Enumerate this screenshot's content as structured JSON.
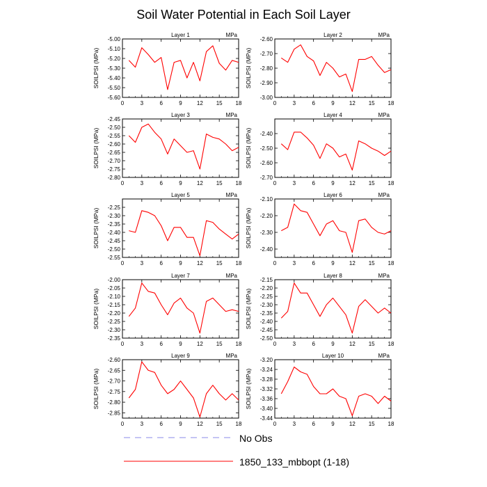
{
  "figure": {
    "title": "Soil Water Potential in Each Soil Layer",
    "legend": [
      {
        "label": "No Obs",
        "color": "#8a8ae8",
        "dash": true
      },
      {
        "label": "1850_133_mbbopt (1-18)",
        "color": "#ff0000",
        "dash": false
      }
    ]
  },
  "chart_data": [
    {
      "type": "line",
      "title": "Layer 1",
      "unit": "MPa",
      "ylabel": "SOILPSI  (MPa)",
      "x": [
        1,
        2,
        3,
        4,
        5,
        6,
        7,
        8,
        9,
        10,
        11,
        12,
        13,
        14,
        15,
        16,
        17,
        18
      ],
      "xticks": [
        0,
        3,
        6,
        9,
        12,
        15,
        18
      ],
      "xlim": [
        0,
        18
      ],
      "ylim": [
        -5.6,
        -5.0
      ],
      "yticks": [
        -5.6,
        -5.5,
        -5.4,
        -5.3,
        -5.2,
        -5.1,
        -5.0
      ],
      "ytick_labels": [
        "-5.60",
        "-5.50",
        "-5.40",
        "-5.30",
        "-5.20",
        "-5.10",
        "-5.00"
      ],
      "series": [
        {
          "name": "1850_133_mbbopt (1-18)",
          "color": "#ff0000",
          "values": [
            -5.22,
            -5.29,
            -5.09,
            -5.16,
            -5.24,
            -5.19,
            -5.52,
            -5.24,
            -5.22,
            -5.4,
            -5.24,
            -5.43,
            -5.13,
            -5.07,
            -5.25,
            -5.32,
            -5.22,
            -5.24
          ]
        }
      ]
    },
    {
      "type": "line",
      "title": "Layer 2",
      "unit": "MPa",
      "ylabel": "SOILPSI  (MPa)",
      "x": [
        1,
        2,
        3,
        4,
        5,
        6,
        7,
        8,
        9,
        10,
        11,
        12,
        13,
        14,
        15,
        16,
        17,
        18
      ],
      "xticks": [
        0,
        3,
        6,
        9,
        12,
        15,
        18
      ],
      "xlim": [
        0,
        18
      ],
      "ylim": [
        -3.0,
        -2.6
      ],
      "yticks": [
        -3.0,
        -2.9,
        -2.8,
        -2.7,
        -2.6
      ],
      "ytick_labels": [
        "-3.00",
        "-2.90",
        "-2.80",
        "-2.70",
        "-2.60"
      ],
      "series": [
        {
          "name": "1850_133_mbbopt (1-18)",
          "color": "#ff0000",
          "values": [
            -2.73,
            -2.76,
            -2.67,
            -2.64,
            -2.72,
            -2.75,
            -2.85,
            -2.76,
            -2.8,
            -2.86,
            -2.84,
            -2.96,
            -2.74,
            -2.74,
            -2.72,
            -2.78,
            -2.83,
            -2.81
          ]
        }
      ]
    },
    {
      "type": "line",
      "title": "Layer 3",
      "unit": "MPa",
      "ylabel": "SOILPSI  (MPa)",
      "x": [
        1,
        2,
        3,
        4,
        5,
        6,
        7,
        8,
        9,
        10,
        11,
        12,
        13,
        14,
        15,
        16,
        17,
        18
      ],
      "xticks": [
        0,
        3,
        6,
        9,
        12,
        15,
        18
      ],
      "xlim": [
        0,
        18
      ],
      "ylim": [
        -2.8,
        -2.45
      ],
      "yticks": [
        -2.8,
        -2.75,
        -2.7,
        -2.65,
        -2.6,
        -2.55,
        -2.5,
        -2.45
      ],
      "ytick_labels": [
        "-2.80",
        "-2.75",
        "-2.70",
        "-2.65",
        "-2.60",
        "-2.55",
        "-2.50",
        "-2.45"
      ],
      "series": [
        {
          "name": "1850_133_mbbopt (1-18)",
          "color": "#ff0000",
          "values": [
            -2.55,
            -2.59,
            -2.5,
            -2.48,
            -2.53,
            -2.57,
            -2.66,
            -2.57,
            -2.61,
            -2.65,
            -2.64,
            -2.75,
            -2.54,
            -2.56,
            -2.57,
            -2.6,
            -2.64,
            -2.62
          ]
        }
      ]
    },
    {
      "type": "line",
      "title": "Layer 4",
      "unit": "MPa",
      "ylabel": "SOILPSI  (MPa)",
      "x": [
        1,
        2,
        3,
        4,
        5,
        6,
        7,
        8,
        9,
        10,
        11,
        12,
        13,
        14,
        15,
        16,
        17,
        18
      ],
      "xticks": [
        0,
        3,
        6,
        9,
        12,
        15,
        18
      ],
      "xlim": [
        0,
        18
      ],
      "ylim": [
        -2.7,
        -2.3
      ],
      "yticks": [
        -2.7,
        -2.6,
        -2.5,
        -2.4
      ],
      "ytick_labels": [
        "-2.70",
        "-2.60",
        "-2.50",
        "-2.40"
      ],
      "series": [
        {
          "name": "1850_133_mbbopt (1-18)",
          "color": "#ff0000",
          "values": [
            -2.47,
            -2.51,
            -2.39,
            -2.39,
            -2.43,
            -2.48,
            -2.57,
            -2.47,
            -2.5,
            -2.56,
            -2.54,
            -2.65,
            -2.45,
            -2.47,
            -2.5,
            -2.52,
            -2.55,
            -2.52
          ]
        }
      ]
    },
    {
      "type": "line",
      "title": "Layer 5",
      "unit": "MPa",
      "ylabel": "SOILPSI  (MPa)",
      "x": [
        1,
        2,
        3,
        4,
        5,
        6,
        7,
        8,
        9,
        10,
        11,
        12,
        13,
        14,
        15,
        16,
        17,
        18
      ],
      "xticks": [
        0,
        3,
        6,
        9,
        12,
        15,
        18
      ],
      "xlim": [
        0,
        18
      ],
      "ylim": [
        -2.55,
        -2.2
      ],
      "yticks": [
        -2.55,
        -2.5,
        -2.45,
        -2.4,
        -2.35,
        -2.3,
        -2.25
      ],
      "ytick_labels": [
        "-2.55",
        "-2.50",
        "-2.45",
        "-2.40",
        "-2.35",
        "-2.30",
        "-2.25"
      ],
      "series": [
        {
          "name": "1850_133_mbbopt (1-18)",
          "color": "#ff0000",
          "values": [
            -2.39,
            -2.4,
            -2.27,
            -2.28,
            -2.3,
            -2.36,
            -2.45,
            -2.37,
            -2.37,
            -2.43,
            -2.43,
            -2.54,
            -2.33,
            -2.34,
            -2.38,
            -2.41,
            -2.44,
            -2.41
          ]
        }
      ]
    },
    {
      "type": "line",
      "title": "Layer 6",
      "unit": "MPa",
      "ylabel": "SOILPSI  (MPa)",
      "x": [
        1,
        2,
        3,
        4,
        5,
        6,
        7,
        8,
        9,
        10,
        11,
        12,
        13,
        14,
        15,
        16,
        17,
        18
      ],
      "xticks": [
        0,
        3,
        6,
        9,
        12,
        15,
        18
      ],
      "xlim": [
        0,
        18
      ],
      "ylim": [
        -2.45,
        -2.1
      ],
      "yticks": [
        -2.4,
        -2.3,
        -2.2,
        -2.1
      ],
      "ytick_labels": [
        "-2.40",
        "-2.30",
        "-2.20",
        "-2.10"
      ],
      "series": [
        {
          "name": "1850_133_mbbopt (1-18)",
          "color": "#ff0000",
          "values": [
            -2.29,
            -2.27,
            -2.13,
            -2.17,
            -2.18,
            -2.25,
            -2.32,
            -2.25,
            -2.23,
            -2.29,
            -2.3,
            -2.42,
            -2.23,
            -2.22,
            -2.27,
            -2.3,
            -2.31,
            -2.29
          ]
        }
      ]
    },
    {
      "type": "line",
      "title": "Layer 7",
      "unit": "MPa",
      "ylabel": "SOILPSI  (MPa)",
      "x": [
        1,
        2,
        3,
        4,
        5,
        6,
        7,
        8,
        9,
        10,
        11,
        12,
        13,
        14,
        15,
        16,
        17,
        18
      ],
      "xticks": [
        0,
        3,
        6,
        9,
        12,
        15,
        18
      ],
      "xlim": [
        0,
        18
      ],
      "ylim": [
        -2.35,
        -2.0
      ],
      "yticks": [
        -2.35,
        -2.3,
        -2.25,
        -2.2,
        -2.15,
        -2.1,
        -2.05,
        -2.0
      ],
      "ytick_labels": [
        "-2.35",
        "-2.30",
        "-2.25",
        "-2.20",
        "-2.15",
        "-2.10",
        "-2.05",
        "-2.00"
      ],
      "series": [
        {
          "name": "1850_133_mbbopt (1-18)",
          "color": "#ff0000",
          "values": [
            -2.22,
            -2.17,
            -2.02,
            -2.07,
            -2.08,
            -2.15,
            -2.21,
            -2.14,
            -2.11,
            -2.17,
            -2.2,
            -2.32,
            -2.13,
            -2.11,
            -2.15,
            -2.19,
            -2.18,
            -2.19
          ]
        }
      ]
    },
    {
      "type": "line",
      "title": "Layer 8",
      "unit": "MPa",
      "ylabel": "SOILPSI  (MPa)",
      "x": [
        1,
        2,
        3,
        4,
        5,
        6,
        7,
        8,
        9,
        10,
        11,
        12,
        13,
        14,
        15,
        16,
        17,
        18
      ],
      "xticks": [
        0,
        3,
        6,
        9,
        12,
        15,
        18
      ],
      "xlim": [
        0,
        18
      ],
      "ylim": [
        -2.5,
        -2.15
      ],
      "yticks": [
        -2.5,
        -2.45,
        -2.4,
        -2.35,
        -2.3,
        -2.25,
        -2.2,
        -2.15
      ],
      "ytick_labels": [
        "-2.50",
        "-2.45",
        "-2.40",
        "-2.35",
        "-2.30",
        "-2.25",
        "-2.20",
        "-2.15"
      ],
      "series": [
        {
          "name": "1850_133_mbbopt (1-18)",
          "color": "#ff0000",
          "values": [
            -2.38,
            -2.34,
            -2.17,
            -2.23,
            -2.23,
            -2.3,
            -2.37,
            -2.3,
            -2.26,
            -2.31,
            -2.36,
            -2.47,
            -2.31,
            -2.27,
            -2.31,
            -2.35,
            -2.32,
            -2.35
          ]
        }
      ]
    },
    {
      "type": "line",
      "title": "Layer 9",
      "unit": "MPa",
      "ylabel": "SOILPSI  (MPa)",
      "x": [
        1,
        2,
        3,
        4,
        5,
        6,
        7,
        8,
        9,
        10,
        11,
        12,
        13,
        14,
        15,
        16,
        17,
        18
      ],
      "xticks": [
        0,
        3,
        6,
        9,
        12,
        15,
        18
      ],
      "xlim": [
        0,
        18
      ],
      "ylim": [
        -2.875,
        -2.6
      ],
      "yticks": [
        -2.85,
        -2.8,
        -2.75,
        -2.7,
        -2.65,
        -2.6
      ],
      "ytick_labels": [
        "-2.85",
        "-2.80",
        "-2.75",
        "-2.70",
        "-2.65",
        "-2.60"
      ],
      "series": [
        {
          "name": "1850_133_mbbopt (1-18)",
          "color": "#ff0000",
          "values": [
            -2.78,
            -2.74,
            -2.61,
            -2.65,
            -2.66,
            -2.72,
            -2.76,
            -2.74,
            -2.7,
            -2.74,
            -2.78,
            -2.87,
            -2.76,
            -2.72,
            -2.76,
            -2.79,
            -2.76,
            -2.79
          ]
        }
      ]
    },
    {
      "type": "line",
      "title": "Layer 10",
      "unit": "MPa",
      "ylabel": "SOILPSI  (MPa)",
      "x": [
        1,
        2,
        3,
        4,
        5,
        6,
        7,
        8,
        9,
        10,
        11,
        12,
        13,
        14,
        15,
        16,
        17,
        18
      ],
      "xticks": [
        0,
        3,
        6,
        9,
        12,
        15,
        18
      ],
      "xlim": [
        0,
        18
      ],
      "ylim": [
        -3.44,
        -3.2
      ],
      "yticks": [
        -3.44,
        -3.4,
        -3.36,
        -3.32,
        -3.28,
        -3.24,
        -3.2
      ],
      "ytick_labels": [
        "-3.44",
        "-3.40",
        "-3.36",
        "-3.32",
        "-3.28",
        "-3.24",
        "-3.20"
      ],
      "series": [
        {
          "name": "1850_133_mbbopt (1-18)",
          "color": "#ff0000",
          "values": [
            -3.34,
            -3.29,
            -3.23,
            -3.25,
            -3.26,
            -3.31,
            -3.34,
            -3.34,
            -3.32,
            -3.35,
            -3.36,
            -3.43,
            -3.35,
            -3.34,
            -3.35,
            -3.38,
            -3.35,
            -3.37
          ]
        }
      ]
    }
  ]
}
